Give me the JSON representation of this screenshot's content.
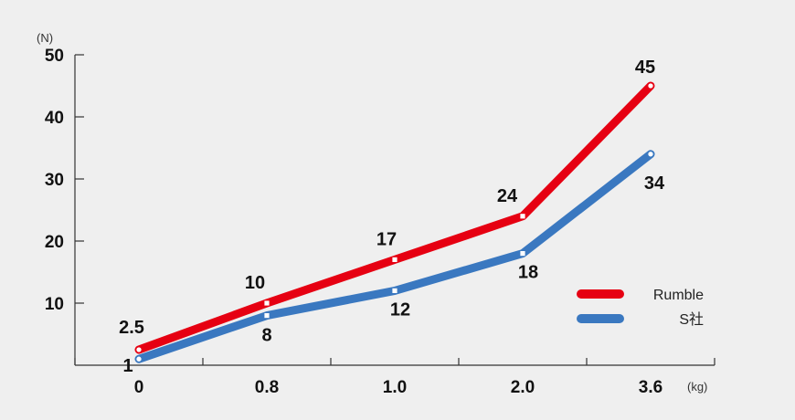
{
  "chart_data": {
    "type": "line",
    "categories": [
      "0",
      "0.8",
      "1.0",
      "2.0",
      "3.6"
    ],
    "y_unit": "(N)",
    "x_unit": "(kg)",
    "ylim": [
      0,
      50
    ],
    "y_ticks": [
      10,
      20,
      30,
      40,
      50
    ],
    "grid": false,
    "legend_position": "right",
    "series": [
      {
        "name": "Rumble",
        "color": "#e60012",
        "values": [
          2.5,
          10,
          17,
          24,
          45
        ],
        "labels": [
          "2.5",
          "10",
          "17",
          "24",
          "45"
        ]
      },
      {
        "name": "S社",
        "color": "#3a78c0",
        "values": [
          1,
          8,
          12,
          18,
          34
        ],
        "labels": [
          "1",
          "8",
          "12",
          "18",
          "34"
        ]
      }
    ]
  }
}
